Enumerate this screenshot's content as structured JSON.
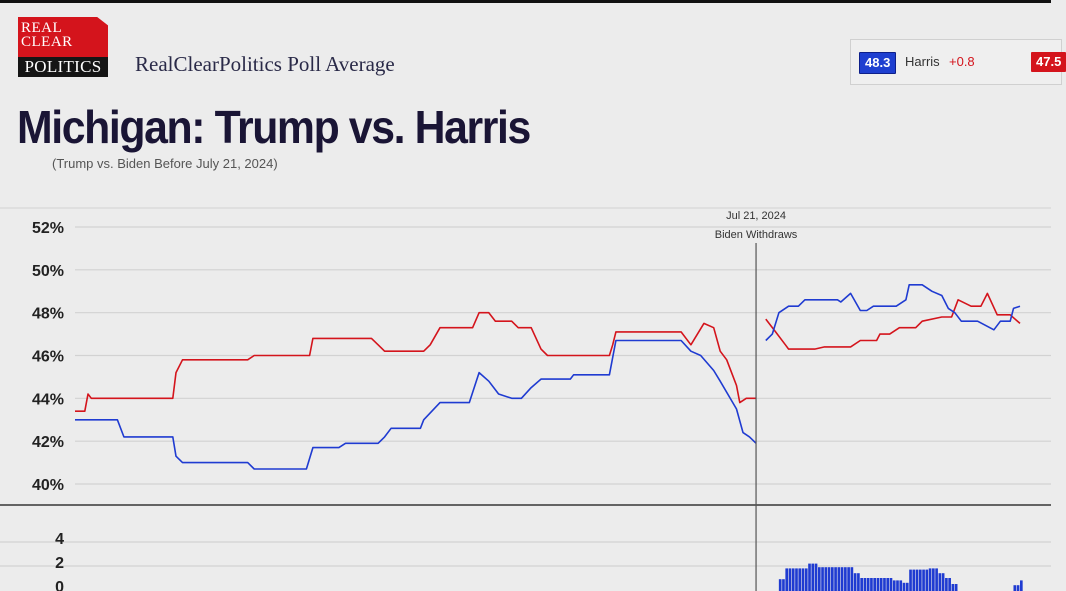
{
  "logo": {
    "line1": "REAL",
    "line2": "CLEAR",
    "line3": "POLITICS"
  },
  "header": {
    "source": "RealClearPolitics Poll Average",
    "title": "Michigan: Trump vs. Harris",
    "note": "(Trump vs. Biden Before July 21, 2024)"
  },
  "summary": {
    "harris_value": "48.3",
    "leader": "Harris",
    "spread": "+0.8",
    "trump_value": "47.5"
  },
  "colors": {
    "dem": "#1f3bd1",
    "rep": "#d4141c",
    "background": "#ececec",
    "grid": "#d2d2d2"
  },
  "chart_data": [
    {
      "type": "line",
      "ylim": [
        40,
        52
      ],
      "yticks": [
        "52%",
        "50%",
        "48%",
        "46%",
        "44%",
        "42%",
        "40%"
      ],
      "ytick_values": [
        52,
        50,
        48,
        46,
        44,
        42,
        40
      ],
      "xlim": [
        "2023-12-25",
        "2024-10-10"
      ],
      "grid": true,
      "annotation": {
        "date": "2024-07-21",
        "line1": "Jul 21, 2024",
        "line2": "Biden Withdraws"
      },
      "series": [
        {
          "color": "#d4141c",
          "segments": [
            [
              [
                "2023-12-25",
                43.4
              ],
              [
                "2023-12-28",
                43.4
              ],
              [
                "2023-12-29",
                44.2
              ],
              [
                "2023-12-30",
                44.0
              ],
              [
                "2024-01-24",
                44.0
              ],
              [
                "2024-01-25",
                45.2
              ],
              [
                "2024-01-27",
                45.8
              ],
              [
                "2024-02-16",
                45.8
              ],
              [
                "2024-02-18",
                46.0
              ],
              [
                "2024-03-06",
                46.0
              ],
              [
                "2024-03-07",
                46.8
              ],
              [
                "2024-03-25",
                46.8
              ],
              [
                "2024-03-27",
                46.5
              ],
              [
                "2024-03-29",
                46.2
              ],
              [
                "2024-04-10",
                46.2
              ],
              [
                "2024-04-12",
                46.5
              ],
              [
                "2024-04-15",
                47.3
              ],
              [
                "2024-04-25",
                47.3
              ],
              [
                "2024-04-27",
                48.0
              ],
              [
                "2024-04-30",
                48.0
              ],
              [
                "2024-05-02",
                47.6
              ],
              [
                "2024-05-07",
                47.6
              ],
              [
                "2024-05-09",
                47.3
              ],
              [
                "2024-05-13",
                47.3
              ],
              [
                "2024-05-16",
                46.3
              ],
              [
                "2024-05-18",
                46.0
              ],
              [
                "2024-06-06",
                46.0
              ],
              [
                "2024-06-07",
                46.5
              ],
              [
                "2024-06-08",
                47.1
              ],
              [
                "2024-06-28",
                47.1
              ],
              [
                "2024-07-01",
                46.5
              ],
              [
                "2024-07-05",
                47.5
              ],
              [
                "2024-07-08",
                47.3
              ],
              [
                "2024-07-10",
                46.2
              ],
              [
                "2024-07-12",
                45.8
              ],
              [
                "2024-07-15",
                44.6
              ],
              [
                "2024-07-16",
                43.8
              ],
              [
                "2024-07-18",
                44.0
              ],
              [
                "2024-07-21",
                44.0
              ]
            ],
            [
              [
                "2024-07-24",
                47.7
              ],
              [
                "2024-07-27",
                47.1
              ],
              [
                "2024-07-30",
                46.5
              ],
              [
                "2024-07-31",
                46.3
              ],
              [
                "2024-08-08",
                46.3
              ],
              [
                "2024-08-11",
                46.4
              ],
              [
                "2024-08-19",
                46.4
              ],
              [
                "2024-08-22",
                46.7
              ],
              [
                "2024-08-27",
                46.7
              ],
              [
                "2024-08-28",
                47.0
              ],
              [
                "2024-08-31",
                47.0
              ],
              [
                "2024-09-03",
                47.3
              ],
              [
                "2024-09-08",
                47.3
              ],
              [
                "2024-09-10",
                47.6
              ],
              [
                "2024-09-16",
                47.8
              ],
              [
                "2024-09-19",
                47.8
              ],
              [
                "2024-09-21",
                48.6
              ],
              [
                "2024-09-25",
                48.3
              ],
              [
                "2024-09-28",
                48.3
              ],
              [
                "2024-09-30",
                48.9
              ],
              [
                "2024-10-03",
                47.9
              ],
              [
                "2024-10-07",
                47.9
              ],
              [
                "2024-10-10",
                47.5
              ]
            ]
          ]
        },
        {
          "color": "#1f3bd1",
          "segments": [
            [
              [
                "2023-12-25",
                43.0
              ],
              [
                "2024-01-07",
                43.0
              ],
              [
                "2024-01-09",
                42.2
              ],
              [
                "2024-01-24",
                42.2
              ],
              [
                "2024-01-25",
                41.3
              ],
              [
                "2024-01-27",
                41.0
              ],
              [
                "2024-02-16",
                41.0
              ],
              [
                "2024-02-18",
                40.7
              ],
              [
                "2024-03-05",
                40.7
              ],
              [
                "2024-03-07",
                41.7
              ],
              [
                "2024-03-15",
                41.7
              ],
              [
                "2024-03-17",
                41.9
              ],
              [
                "2024-03-27",
                41.9
              ],
              [
                "2024-03-29",
                42.2
              ],
              [
                "2024-03-31",
                42.6
              ],
              [
                "2024-04-09",
                42.6
              ],
              [
                "2024-04-10",
                43.0
              ],
              [
                "2024-04-15",
                43.8
              ],
              [
                "2024-04-24",
                43.8
              ],
              [
                "2024-04-27",
                45.2
              ],
              [
                "2024-04-30",
                44.8
              ],
              [
                "2024-05-03",
                44.2
              ],
              [
                "2024-05-07",
                44.0
              ],
              [
                "2024-05-10",
                44.0
              ],
              [
                "2024-05-13",
                44.5
              ],
              [
                "2024-05-16",
                44.9
              ],
              [
                "2024-05-25",
                44.9
              ],
              [
                "2024-05-26",
                45.1
              ],
              [
                "2024-06-06",
                45.1
              ],
              [
                "2024-06-08",
                46.7
              ],
              [
                "2024-06-28",
                46.7
              ],
              [
                "2024-07-01",
                46.2
              ],
              [
                "2024-07-04",
                46.0
              ],
              [
                "2024-07-08",
                45.3
              ],
              [
                "2024-07-10",
                44.8
              ],
              [
                "2024-07-15",
                43.5
              ],
              [
                "2024-07-17",
                42.4
              ],
              [
                "2024-07-19",
                42.2
              ],
              [
                "2024-07-21",
                41.9
              ]
            ],
            [
              [
                "2024-07-24",
                46.7
              ],
              [
                "2024-07-26",
                47.0
              ],
              [
                "2024-07-28",
                48.0
              ],
              [
                "2024-07-31",
                48.3
              ],
              [
                "2024-08-03",
                48.3
              ],
              [
                "2024-08-05",
                48.6
              ],
              [
                "2024-08-15",
                48.6
              ],
              [
                "2024-08-16",
                48.5
              ],
              [
                "2024-08-19",
                48.9
              ],
              [
                "2024-08-22",
                48.1
              ],
              [
                "2024-08-24",
                48.1
              ],
              [
                "2024-08-26",
                48.3
              ],
              [
                "2024-09-02",
                48.3
              ],
              [
                "2024-09-05",
                48.6
              ],
              [
                "2024-09-06",
                49.3
              ],
              [
                "2024-09-10",
                49.3
              ],
              [
                "2024-09-13",
                49.0
              ],
              [
                "2024-09-16",
                48.8
              ],
              [
                "2024-09-18",
                48.2
              ],
              [
                "2024-09-20",
                48.0
              ],
              [
                "2024-09-22",
                47.6
              ],
              [
                "2024-09-27",
                47.6
              ],
              [
                "2024-10-02",
                47.2
              ],
              [
                "2024-10-04",
                47.6
              ],
              [
                "2024-10-07",
                47.6
              ],
              [
                "2024-10-08",
                48.2
              ],
              [
                "2024-10-10",
                48.3
              ]
            ]
          ]
        }
      ]
    },
    {
      "type": "bar",
      "ylim": [
        0,
        4
      ],
      "yticks": [
        "4",
        "2",
        "0"
      ],
      "ytick_values": [
        4,
        2,
        0
      ],
      "xlim": [
        "2023-12-25",
        "2024-10-10"
      ],
      "color": "#1f3bd1",
      "bars": [
        [
          "2024-07-28",
          "2024-07-30",
          0.9
        ],
        [
          "2024-07-30",
          "2024-08-06",
          1.8
        ],
        [
          "2024-08-06",
          "2024-08-09",
          2.2
        ],
        [
          "2024-08-09",
          "2024-08-20",
          1.9
        ],
        [
          "2024-08-20",
          "2024-08-22",
          1.4
        ],
        [
          "2024-08-22",
          "2024-09-01",
          1.0
        ],
        [
          "2024-09-01",
          "2024-09-04",
          0.8
        ],
        [
          "2024-09-04",
          "2024-09-06",
          0.6
        ],
        [
          "2024-09-06",
          "2024-09-12",
          1.7
        ],
        [
          "2024-09-12",
          "2024-09-15",
          1.8
        ],
        [
          "2024-09-15",
          "2024-09-17",
          1.4
        ],
        [
          "2024-09-17",
          "2024-09-19",
          1.0
        ],
        [
          "2024-09-19",
          "2024-09-21",
          0.5
        ],
        [
          "2024-10-08",
          "2024-10-10",
          0.4
        ],
        [
          "2024-10-10",
          "2024-10-11",
          0.8
        ]
      ]
    }
  ]
}
